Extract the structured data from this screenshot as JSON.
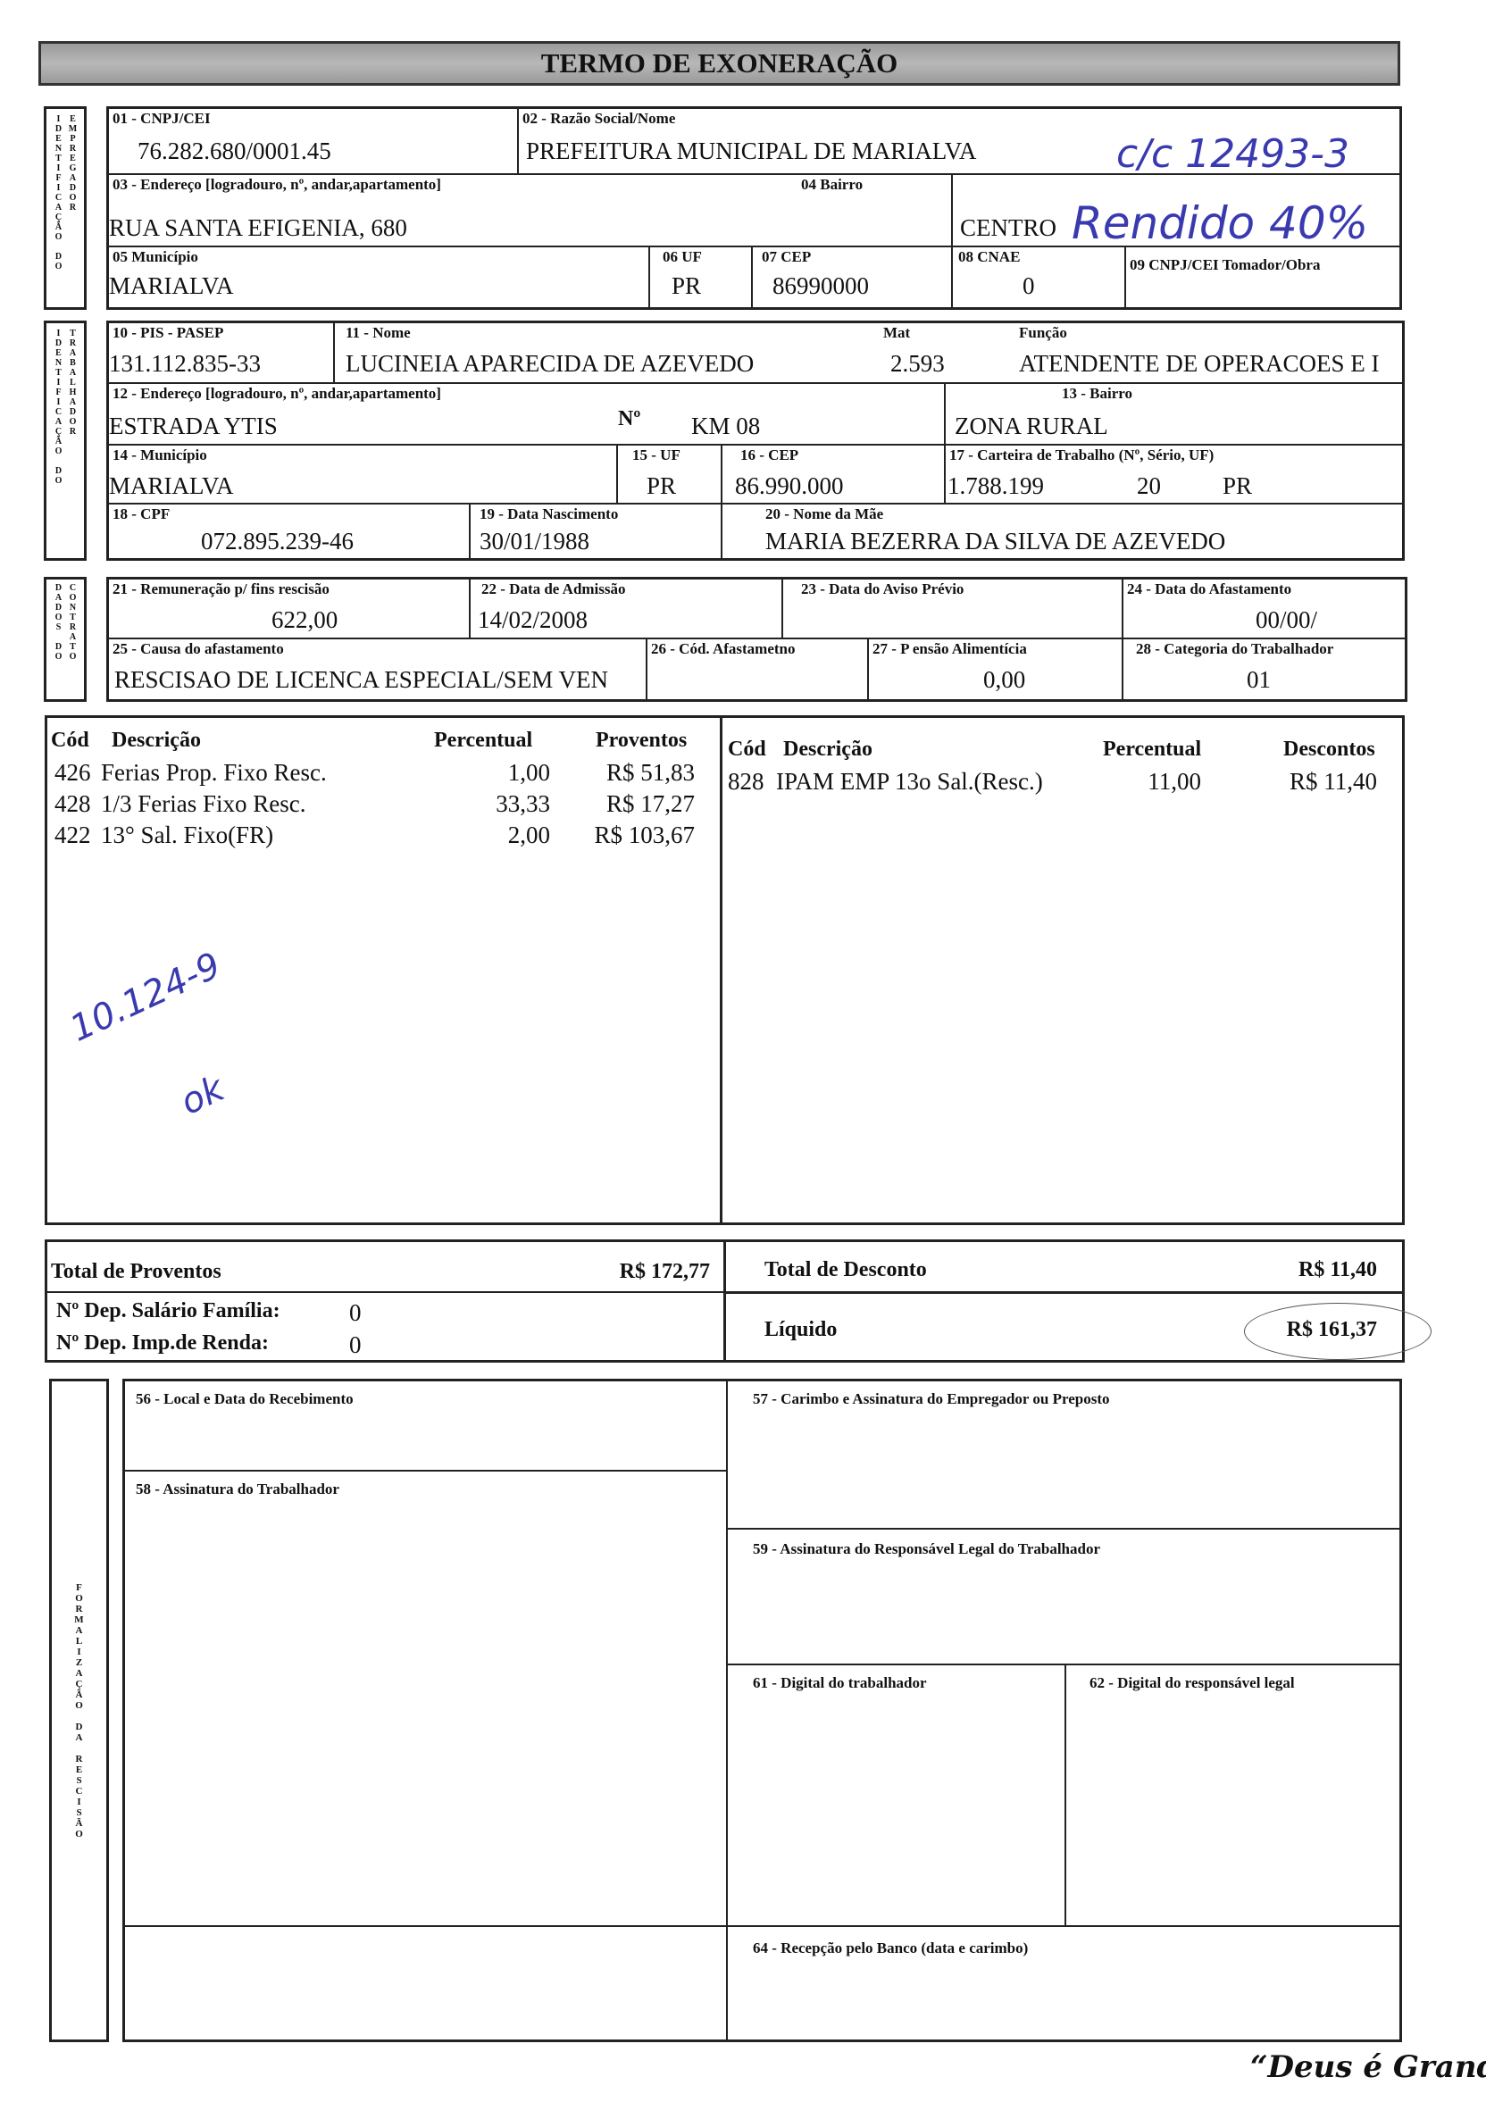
{
  "title": "TERMO DE EXONERAÇÃO",
  "side_labels": {
    "employer": "IDENTIFICAÇÃO DO EMPREGADOR",
    "worker": "IDENTIFICAÇÃO DO TRABALHADOR",
    "contract": "DADOS DO CONTRATO",
    "formalization": "FORMALIZAÇÃO DA RESCISÃO"
  },
  "employer": {
    "cnpj_label": "01 - CNPJ/CEI",
    "cnpj": "76.282.680/0001.45",
    "razao_label": "02 - Razão Social/Nome",
    "razao": "PREFEITURA MUNICIPAL DE MARIALVA",
    "endereco_label": "03 - Endereço [logradouro, nº, andar,apartamento]",
    "endereco": "RUA SANTA EFIGENIA, 680",
    "bairro_label": "04 Bairro",
    "bairro": "CENTRO",
    "municipio_label": "05 Município",
    "municipio": "MARIALVA",
    "uf_label": "06 UF",
    "uf": "PR",
    "cep_label": "07 CEP",
    "cep": "86990000",
    "cnae_label": "08 CNAE",
    "cnae": "0",
    "tomador_label": "09 CNPJ/CEI Tomador/Obra",
    "tomador": ""
  },
  "worker": {
    "pis_label": "10 - PIS - PASEP",
    "pis": "131.112.835-33",
    "nome_label": "11 - Nome",
    "nome": "LUCINEIA APARECIDA DE AZEVEDO",
    "mat_label": "Mat",
    "mat": "2.593",
    "funcao_label": "Função",
    "funcao": "ATENDENTE DE OPERACOES E I",
    "endereco_label": "12 - Endereço [logradouro, nº, andar,apartamento]",
    "endereco": "ESTRADA YTIS",
    "numero_label": "Nº",
    "numero": "KM 08",
    "bairro_label": "13 - Bairro",
    "bairro": "ZONA RURAL",
    "municipio_label": "14 - Município",
    "municipio": "MARIALVA",
    "uf_label": "15 - UF",
    "uf": "PR",
    "cep_label": "16 - CEP",
    "cep": "86.990.000",
    "ctps_label": "17 - Carteira de Trabalho (Nº, Sério, UF)",
    "ctps_numero": "1.788.199",
    "ctps_serie": "20",
    "ctps_uf": "PR",
    "cpf_label": "18 - CPF",
    "cpf": "072.895.239-46",
    "nascimento_label": "19 - Data Nascimento",
    "nascimento": "30/01/1988",
    "mae_label": "20 - Nome da Mãe",
    "mae": "MARIA BEZERRA DA SILVA DE AZEVEDO"
  },
  "contract": {
    "remuneracao_label": "21 - Remuneração p/ fins rescisão",
    "remuneracao": "622,00",
    "admissao_label": "22 - Data  de Admissão",
    "admissao": "14/02/2008",
    "aviso_label": "23 - Data  do Aviso Prévio",
    "aviso": "",
    "afastamento_label": "24 - Data  do Afastamento",
    "afastamento": "00/00/",
    "causa_label": "25 - Causa do afastamento",
    "causa": "RESCISAO DE LICENCA ESPECIAL/SEM VEN",
    "cod_label": "26 - Cód. Afastametno",
    "cod": "",
    "pensao_label": "27 - P ensão Alimentícia",
    "pensao": "0,00",
    "categoria_label": "28 - Categoria do Trabalhador",
    "categoria": "01"
  },
  "proventos": {
    "headers": [
      "Cód",
      "Descrição",
      "Percentual",
      "Proventos"
    ],
    "rows": [
      {
        "cod": "426",
        "desc": "Ferias Prop. Fixo Resc.",
        "perc": "1,00",
        "valor": "R$ 51,83"
      },
      {
        "cod": "428",
        "desc": "1/3 Ferias Fixo Resc.",
        "perc": "33,33",
        "valor": "R$ 17,27"
      },
      {
        "cod": "422",
        "desc": "13° Sal. Fixo(FR)",
        "perc": "2,00",
        "valor": "R$ 103,67"
      }
    ]
  },
  "descontos": {
    "headers": [
      "Cód",
      "Descrição",
      "Percentual",
      "Descontos"
    ],
    "rows": [
      {
        "cod": "828",
        "desc": "IPAM EMP 13o Sal.(Resc.)",
        "perc": "11,00",
        "valor": "R$ 11,40"
      }
    ]
  },
  "totals": {
    "proventos_label": "Total de Proventos",
    "proventos": "R$ 172,77",
    "desconto_label": "Total de Desconto",
    "desconto": "R$ 11,40",
    "salario_familia_label": "Nº Dep. Salário Família:",
    "salario_familia": "0",
    "imp_renda_label": "Nº Dep. Imp.de Renda:",
    "imp_renda": "0",
    "liquido_label": "Líquido",
    "liquido": "R$ 161,37"
  },
  "formalization": {
    "f56": "56 - Local e Data do Recebimento",
    "f57": "57 - Carimbo e Assinatura do Empregador ou Preposto",
    "f58": "58 - Assinatura do Trabalhador",
    "f59": "59 - Assinatura do Responsável Legal do Trabalhador",
    "f61": "61 - Digital do trabalhador",
    "f62": "62 - Digital do responsável legal",
    "f64": "64 - Recepção pelo Banco (data e carimbo)"
  },
  "footer": "“Deus é Grande”",
  "handwriting": {
    "account": "c/c 12493-3",
    "note": "Rendido 40%",
    "code": "10.124-9",
    "ok": "ok"
  },
  "colors": {
    "ink": "#3a3ab0",
    "title_bar": "#a8a8a8"
  }
}
